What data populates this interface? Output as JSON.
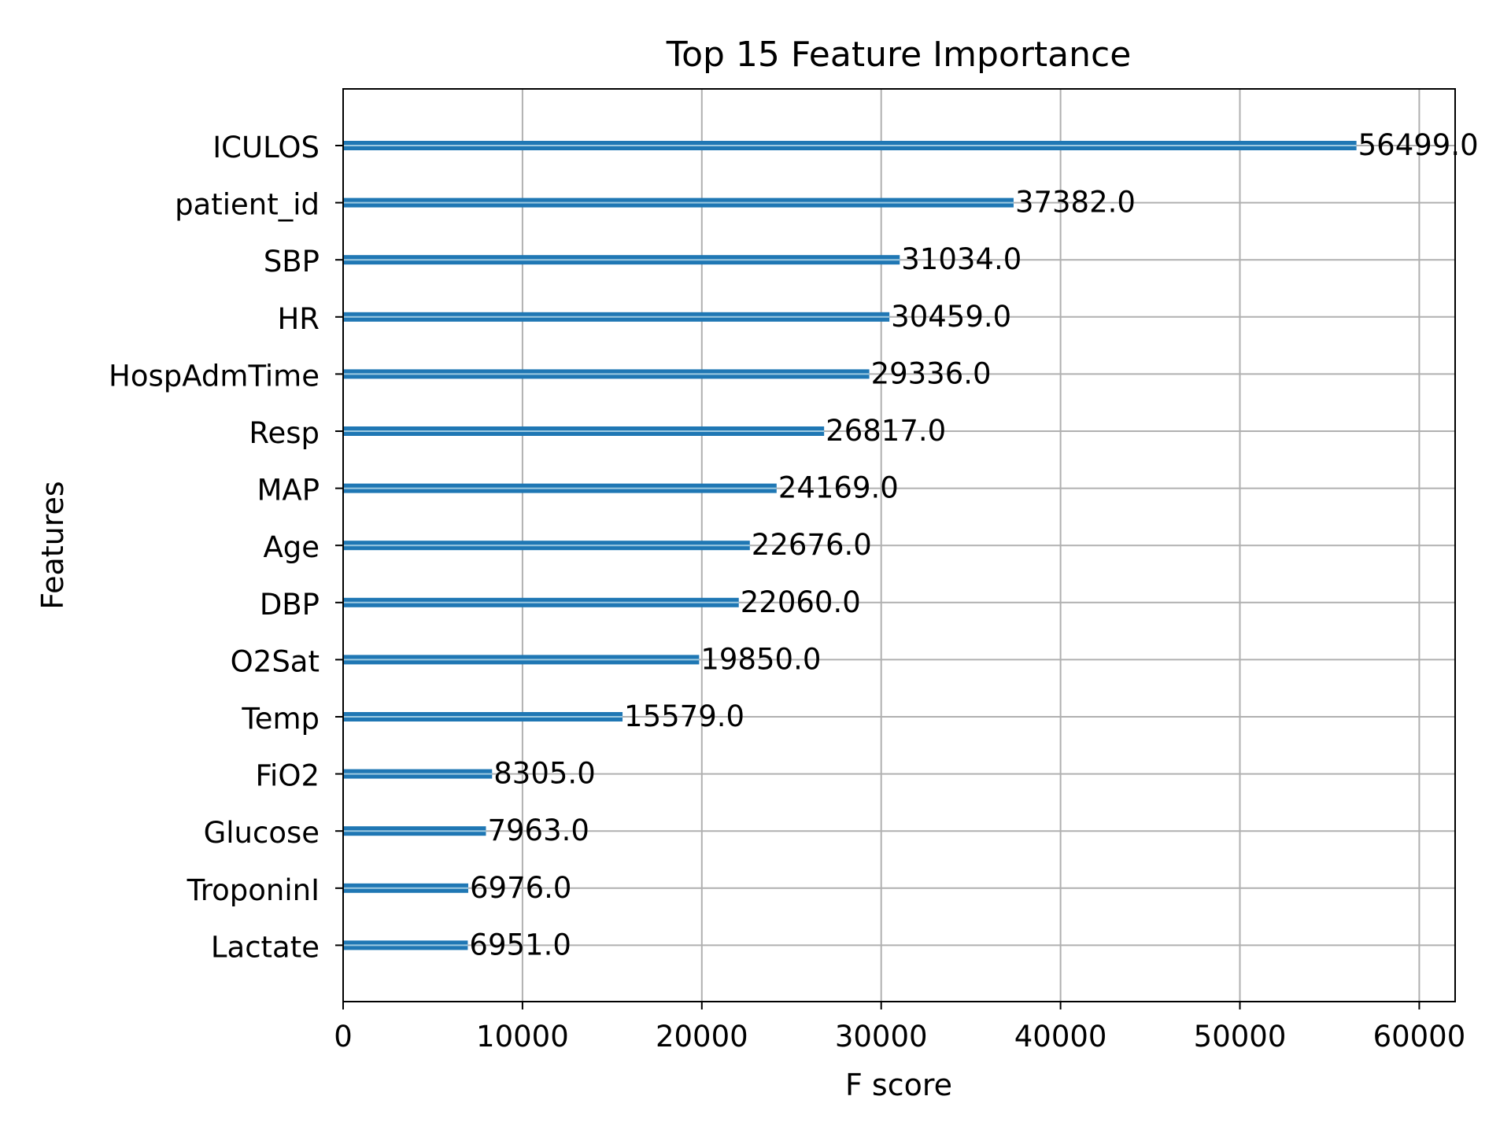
{
  "chart_data": {
    "type": "bar",
    "orientation": "horizontal",
    "title": "Top 15 Feature Importance",
    "xlabel": "F score",
    "ylabel": "Features",
    "xlim": [
      0,
      62000
    ],
    "xticks": [
      0,
      10000,
      20000,
      30000,
      40000,
      50000,
      60000
    ],
    "grid": true,
    "categories": [
      "ICULOS",
      "patient_id",
      "SBP",
      "HR",
      "HospAdmTime",
      "Resp",
      "MAP",
      "Age",
      "DBP",
      "O2Sat",
      "Temp",
      "FiO2",
      "Glucose",
      "TroponinI",
      "Lactate"
    ],
    "values": [
      56499,
      37382,
      31034,
      30459,
      29336,
      26817,
      24169,
      22676,
      22060,
      19850,
      15579,
      8305,
      7963,
      6976,
      6951
    ],
    "value_labels": [
      "56499.0",
      "37382.0",
      "31034.0",
      "30459.0",
      "29336.0",
      "26817.0",
      "24169.0",
      "22676.0",
      "22060.0",
      "19850.0",
      "15579.0",
      "8305.0",
      "7963.0",
      "6976.0",
      "6951.0"
    ],
    "bar_color": "#1f77b4",
    "grid_color": "#b0b0b0"
  }
}
